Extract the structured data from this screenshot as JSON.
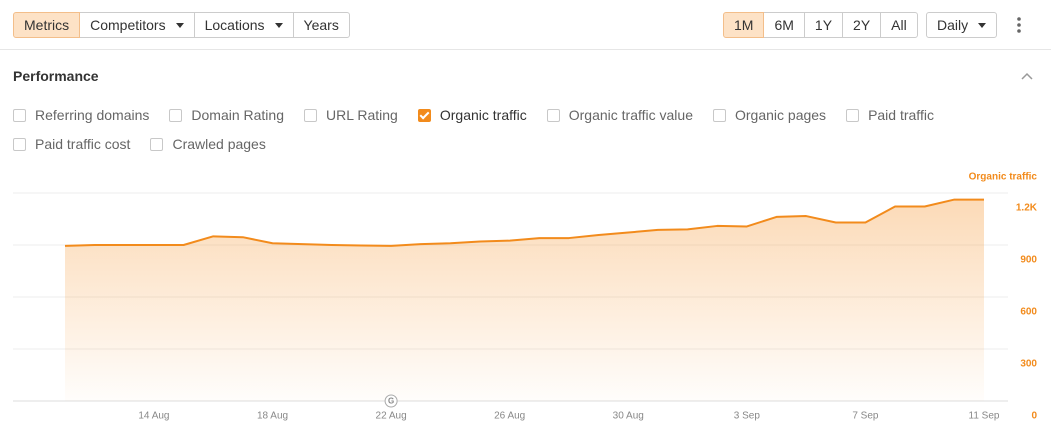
{
  "toolbar": {
    "left": [
      "Metrics",
      "Competitors",
      "Locations",
      "Years"
    ],
    "ranges": [
      "1M",
      "6M",
      "1Y",
      "2Y",
      "All"
    ],
    "interval": "Daily"
  },
  "section": {
    "title": "Performance"
  },
  "checkboxes": [
    {
      "label": "Referring domains",
      "checked": false
    },
    {
      "label": "Domain Rating",
      "checked": false
    },
    {
      "label": "URL Rating",
      "checked": false
    },
    {
      "label": "Organic traffic",
      "checked": true
    },
    {
      "label": "Organic traffic value",
      "checked": false
    },
    {
      "label": "Organic pages",
      "checked": false
    },
    {
      "label": "Paid traffic",
      "checked": false
    },
    {
      "label": "Paid traffic cost",
      "checked": false
    },
    {
      "label": "Crawled pages",
      "checked": false
    }
  ],
  "chart_data": {
    "type": "area",
    "categories": [
      null,
      null,
      null,
      "14 Aug",
      null,
      null,
      null,
      "18 Aug",
      null,
      null,
      null,
      "22 Aug",
      null,
      null,
      null,
      "26 Aug",
      null,
      null,
      null,
      "30 Aug",
      null,
      null,
      null,
      "3 Sep",
      null,
      null,
      null,
      "7 Sep",
      null,
      null,
      null,
      "11 Sep"
    ],
    "series": [
      {
        "name": "Organic traffic",
        "color": "#f28b1c",
        "values": [
          895,
          900,
          900,
          900,
          900,
          950,
          945,
          910,
          905,
          900,
          897,
          895,
          905,
          910,
          920,
          925,
          940,
          940,
          958,
          972,
          987,
          990,
          1010,
          1007,
          1062,
          1067,
          1030,
          1030,
          1122,
          1122,
          1162,
          1162
        ]
      }
    ],
    "ylim": [
      0,
      1200
    ],
    "yticks": [
      0,
      300,
      600,
      900,
      {
        "value": 1200,
        "label": "1.2K"
      }
    ],
    "grid": true,
    "annotations": [
      {
        "x": "22 Aug",
        "text": "G"
      }
    ]
  }
}
